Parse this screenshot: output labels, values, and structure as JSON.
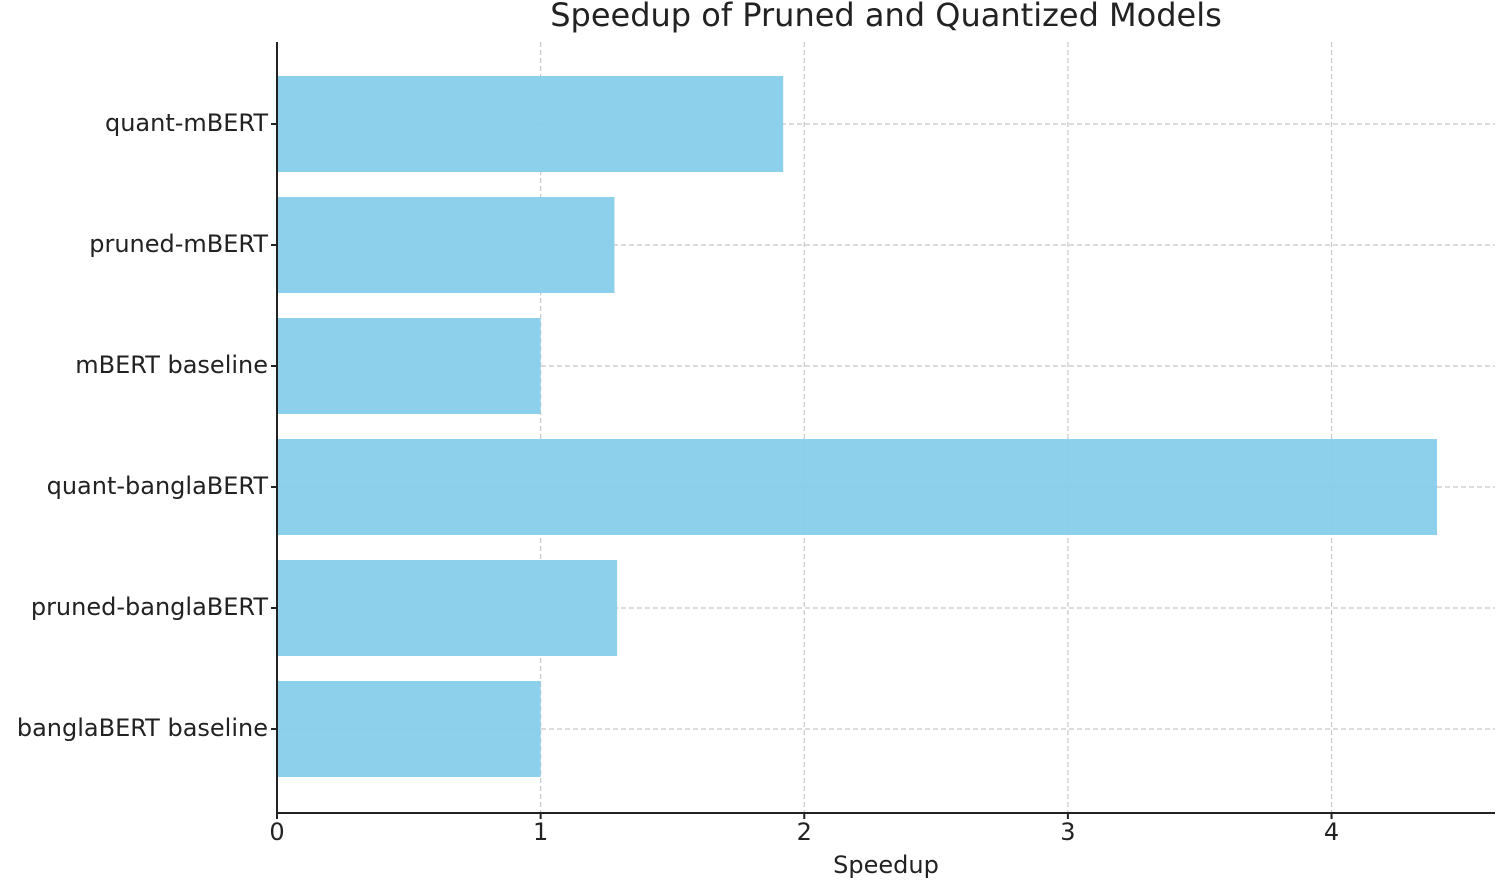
{
  "chart_data": {
    "type": "barh",
    "title": "Speedup of Pruned and Quantized Models",
    "x_label": "Speedup",
    "categories": [
      "quant-mBERT",
      "pruned-mBERT",
      "mBERT baseline",
      "quant-banglaBERT",
      "pruned-banglaBERT",
      "banglaBERT baseline"
    ],
    "values": [
      1.92,
      1.28,
      1.0,
      4.4,
      1.29,
      1.0
    ],
    "color": "#87ceeb",
    "xlim": [
      0,
      4.62
    ],
    "xticks": [
      0,
      1,
      2,
      3,
      4
    ],
    "grid": true
  }
}
